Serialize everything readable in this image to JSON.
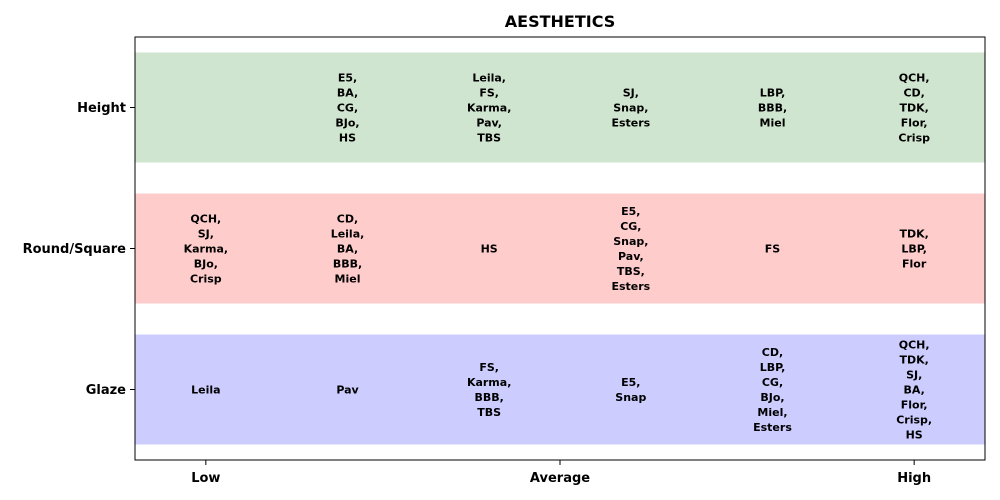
{
  "chart_data": {
    "type": "table",
    "title": "AESTHETICS",
    "x_ticks": [
      "Low",
      "Average",
      "High"
    ],
    "rows": [
      {
        "label": "Height",
        "color": "#cfe5cf",
        "cells": [
          {
            "x": 2,
            "text": "E5,\nBA,\nCG,\nBJo,\nHS"
          },
          {
            "x": 3,
            "text": "Leila,\nFS,\nKarma,\nPav,\nTBS"
          },
          {
            "x": 4,
            "text": "SJ,\nSnap,\nEsters"
          },
          {
            "x": 5,
            "text": "LBP,\nBBB,\nMiel"
          },
          {
            "x": 6,
            "text": "QCH,\nCD,\nTDK,\nFlor,\nCrisp"
          }
        ]
      },
      {
        "label": "Round/Square",
        "color": "#ffcccc",
        "cells": [
          {
            "x": 1,
            "text": "QCH,\nSJ,\nKarma,\nBJo,\nCrisp"
          },
          {
            "x": 2,
            "text": "CD,\nLeila,\nBA,\nBBB,\nMiel"
          },
          {
            "x": 3,
            "text": "HS"
          },
          {
            "x": 4,
            "text": "E5,\nCG,\nSnap,\nPav,\nTBS,\nEsters"
          },
          {
            "x": 5,
            "text": "FS"
          },
          {
            "x": 6,
            "text": "TDK,\nLBP,\nFlor"
          }
        ]
      },
      {
        "label": "Glaze",
        "color": "#ccccff",
        "cells": [
          {
            "x": 1,
            "text": "Leila"
          },
          {
            "x": 2,
            "text": "Pav"
          },
          {
            "x": 3,
            "text": "FS,\nKarma,\nBBB,\nTBS"
          },
          {
            "x": 4,
            "text": "E5,\nSnap"
          },
          {
            "x": 5,
            "text": "CD,\nLBP,\nCG,\nBJo,\nMiel,\nEsters"
          },
          {
            "x": 6,
            "text": "QCH,\nTDK,\nSJ,\nBA,\nFlor,\nCrisp,\nHS"
          }
        ]
      }
    ]
  }
}
